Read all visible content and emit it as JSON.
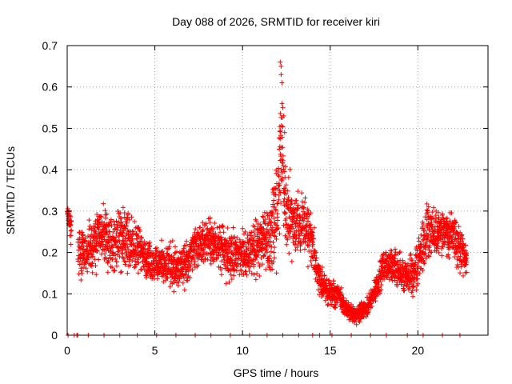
{
  "chart_data": {
    "type": "scatter",
    "title": "Day 088 of 2026, SRMTID for receiver kiri",
    "xlabel": "GPS time / hours",
    "ylabel": "SRMTID / TECUs",
    "xlim": [
      0,
      24
    ],
    "ylim": [
      0,
      0.7
    ],
    "xticks": [
      0,
      5,
      10,
      15,
      20
    ],
    "yticks": [
      0,
      0.1,
      0.2,
      0.3,
      0.4,
      0.5,
      0.6,
      0.7
    ],
    "xtick_labels": [
      "0",
      "5",
      "10",
      "15",
      "20"
    ],
    "ytick_labels": [
      "0",
      "0.1",
      "0.2",
      "0.3",
      "0.4",
      "0.5",
      "0.6",
      "0.7"
    ],
    "grid": true,
    "marker": "+",
    "series": [
      {
        "name": "SRMTID",
        "color": "#ff0000",
        "envelope_hours": [
          0,
          0.5,
          1,
          1.5,
          2,
          2.5,
          3,
          3.5,
          4,
          4.5,
          5,
          5.5,
          6,
          6.5,
          7,
          7.5,
          8,
          8.5,
          9,
          9.5,
          10,
          10.5,
          11,
          11.5,
          12,
          12.2,
          12.5,
          13,
          13.5,
          14,
          14.5,
          15,
          15.5,
          16,
          16.5,
          17,
          17.5,
          18,
          18.5,
          19,
          19.5,
          20,
          20.5,
          21,
          21.5,
          22,
          22.5,
          22.8
        ],
        "envelope_center": [
          0.3,
          0.2,
          0.2,
          0.22,
          0.25,
          0.22,
          0.23,
          0.22,
          0.22,
          0.18,
          0.17,
          0.17,
          0.17,
          0.16,
          0.19,
          0.22,
          0.23,
          0.22,
          0.2,
          0.19,
          0.2,
          0.2,
          0.22,
          0.24,
          0.28,
          0.45,
          0.3,
          0.27,
          0.27,
          0.22,
          0.12,
          0.1,
          0.1,
          0.06,
          0.05,
          0.06,
          0.1,
          0.16,
          0.17,
          0.15,
          0.14,
          0.17,
          0.25,
          0.24,
          0.25,
          0.25,
          0.2,
          0.18
        ],
        "envelope_spread": [
          0.03,
          0.1,
          0.08,
          0.1,
          0.1,
          0.1,
          0.12,
          0.1,
          0.08,
          0.06,
          0.07,
          0.07,
          0.08,
          0.08,
          0.07,
          0.07,
          0.07,
          0.07,
          0.08,
          0.08,
          0.08,
          0.08,
          0.09,
          0.12,
          0.15,
          0.2,
          0.15,
          0.12,
          0.1,
          0.08,
          0.06,
          0.05,
          0.04,
          0.03,
          0.03,
          0.03,
          0.04,
          0.05,
          0.06,
          0.06,
          0.07,
          0.08,
          0.1,
          0.08,
          0.08,
          0.08,
          0.07,
          0.05
        ],
        "peak_values": [
          [
            12.15,
            0.66
          ],
          [
            12.2,
            0.65
          ],
          [
            12.2,
            0.63
          ],
          [
            12.25,
            0.61
          ],
          [
            12.25,
            0.56
          ],
          [
            12.3,
            0.55
          ],
          [
            12.35,
            0.53
          ],
          [
            12.4,
            0.49
          ]
        ],
        "zero_values_hours": [
          0.05,
          0.4,
          0.55,
          0.6,
          1.2,
          2.1,
          3.0,
          4.0,
          5.1,
          6.2,
          7.3,
          8.2,
          9.3,
          10.4,
          11.4,
          12.3,
          13.2,
          14.0,
          14.4,
          15.1,
          16.2,
          17.3,
          18.2,
          19.4,
          20.3,
          21.4,
          22.4
        ]
      }
    ]
  }
}
